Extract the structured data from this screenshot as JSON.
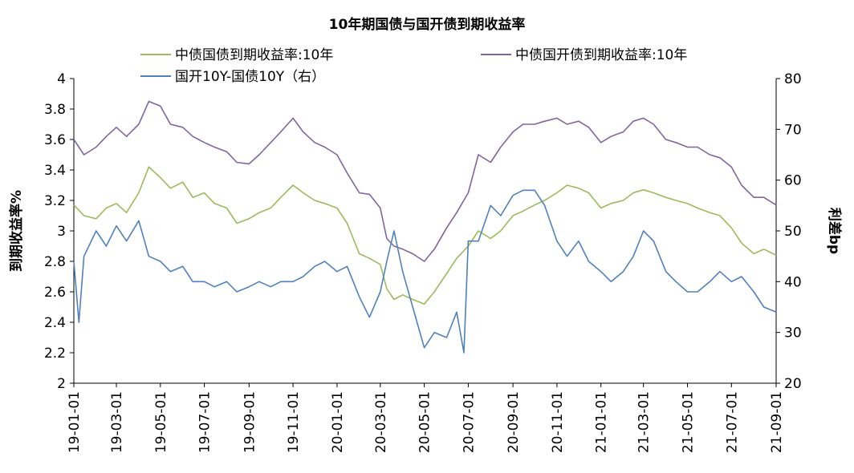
{
  "chart_data": {
    "type": "line",
    "title": "10年期国债与国开债到期收益率",
    "ylabel_left": "到期收益率%",
    "ylabel_right": "利差bp",
    "ylim_left": [
      2,
      4
    ],
    "yticks_left": [
      "4",
      "3.8",
      "3.6",
      "3.4",
      "3.2",
      "3",
      "2.8",
      "2.6",
      "2.4",
      "2.2",
      "2"
    ],
    "ylim_right": [
      20,
      80
    ],
    "yticks_right": [
      "80",
      "70",
      "60",
      "50",
      "40",
      "30",
      "20"
    ],
    "x_ticks": [
      "19-01-01",
      "19-03-01",
      "19-05-01",
      "19-07-01",
      "19-09-01",
      "19-11-01",
      "20-01-01",
      "20-03-01",
      "20-05-01",
      "20-07-01",
      "20-09-01",
      "20-11-01",
      "21-01-01",
      "21-03-01",
      "21-05-01",
      "21-07-01",
      "21-09-01"
    ],
    "legend_position": "top",
    "series": [
      {
        "name": "中债国债到期收益率:10年",
        "color": "#9bbb59",
        "axis": "left",
        "x": [
          "2019-01-01",
          "2019-01-15",
          "2019-02-01",
          "2019-02-15",
          "2019-03-01",
          "2019-03-15",
          "2019-04-01",
          "2019-04-15",
          "2019-05-01",
          "2019-05-15",
          "2019-06-01",
          "2019-06-15",
          "2019-07-01",
          "2019-07-15",
          "2019-08-01",
          "2019-08-15",
          "2019-09-01",
          "2019-09-15",
          "2019-10-01",
          "2019-10-15",
          "2019-11-01",
          "2019-11-15",
          "2019-12-01",
          "2019-12-15",
          "2020-01-01",
          "2020-01-15",
          "2020-02-01",
          "2020-02-15",
          "2020-03-01",
          "2020-03-10",
          "2020-03-20",
          "2020-04-01",
          "2020-04-15",
          "2020-05-01",
          "2020-05-15",
          "2020-06-01",
          "2020-06-15",
          "2020-07-01",
          "2020-07-15",
          "2020-08-01",
          "2020-08-15",
          "2020-09-01",
          "2020-09-15",
          "2020-10-01",
          "2020-10-15",
          "2020-11-01",
          "2020-11-15",
          "2020-12-01",
          "2020-12-15",
          "2021-01-01",
          "2021-01-15",
          "2021-02-01",
          "2021-02-15",
          "2021-03-01",
          "2021-03-15",
          "2021-04-01",
          "2021-04-15",
          "2021-05-01",
          "2021-05-15",
          "2021-06-01",
          "2021-06-15",
          "2021-07-01",
          "2021-07-15",
          "2021-08-01",
          "2021-08-15",
          "2021-09-01"
        ],
        "values": [
          3.17,
          3.1,
          3.08,
          3.15,
          3.18,
          3.12,
          3.25,
          3.42,
          3.35,
          3.28,
          3.32,
          3.22,
          3.25,
          3.18,
          3.15,
          3.05,
          3.08,
          3.12,
          3.15,
          3.22,
          3.3,
          3.25,
          3.2,
          3.18,
          3.15,
          3.05,
          2.85,
          2.82,
          2.78,
          2.62,
          2.55,
          2.58,
          2.55,
          2.52,
          2.6,
          2.72,
          2.82,
          2.9,
          3.0,
          2.95,
          3.0,
          3.1,
          3.13,
          3.17,
          3.2,
          3.25,
          3.3,
          3.28,
          3.25,
          3.15,
          3.18,
          3.2,
          3.25,
          3.27,
          3.25,
          3.22,
          3.2,
          3.18,
          3.15,
          3.12,
          3.1,
          3.02,
          2.92,
          2.85,
          2.88,
          2.84
        ]
      },
      {
        "name": "中债国开债到期收益率:10年",
        "color": "#8064a2",
        "axis": "left",
        "x": [
          "2019-01-01",
          "2019-01-15",
          "2019-02-01",
          "2019-02-15",
          "2019-03-01",
          "2019-03-15",
          "2019-04-01",
          "2019-04-15",
          "2019-05-01",
          "2019-05-15",
          "2019-06-01",
          "2019-06-15",
          "2019-07-01",
          "2019-07-15",
          "2019-08-01",
          "2019-08-15",
          "2019-09-01",
          "2019-09-15",
          "2019-10-01",
          "2019-10-15",
          "2019-11-01",
          "2019-11-15",
          "2019-12-01",
          "2019-12-15",
          "2020-01-01",
          "2020-01-15",
          "2020-02-01",
          "2020-02-15",
          "2020-03-01",
          "2020-03-10",
          "2020-03-20",
          "2020-04-01",
          "2020-04-15",
          "2020-05-01",
          "2020-05-15",
          "2020-06-01",
          "2020-06-15",
          "2020-07-01",
          "2020-07-15",
          "2020-08-01",
          "2020-08-15",
          "2020-09-01",
          "2020-09-15",
          "2020-10-01",
          "2020-10-15",
          "2020-11-01",
          "2020-11-15",
          "2020-12-01",
          "2020-12-15",
          "2021-01-01",
          "2021-01-15",
          "2021-02-01",
          "2021-02-15",
          "2021-03-01",
          "2021-03-15",
          "2021-04-01",
          "2021-04-15",
          "2021-05-01",
          "2021-05-15",
          "2021-06-01",
          "2021-06-15",
          "2021-07-01",
          "2021-07-15",
          "2021-08-01",
          "2021-08-15",
          "2021-09-01"
        ],
        "values": [
          3.6,
          3.5,
          3.55,
          3.62,
          3.68,
          3.62,
          3.7,
          3.85,
          3.82,
          3.7,
          3.68,
          3.62,
          3.58,
          3.55,
          3.52,
          3.45,
          3.44,
          3.5,
          3.58,
          3.65,
          3.74,
          3.65,
          3.58,
          3.55,
          3.5,
          3.38,
          3.25,
          3.24,
          3.15,
          2.95,
          2.9,
          2.88,
          2.85,
          2.8,
          2.88,
          3.02,
          3.12,
          3.25,
          3.5,
          3.45,
          3.55,
          3.65,
          3.7,
          3.7,
          3.72,
          3.74,
          3.7,
          3.72,
          3.68,
          3.58,
          3.62,
          3.65,
          3.72,
          3.74,
          3.7,
          3.6,
          3.58,
          3.55,
          3.55,
          3.5,
          3.48,
          3.42,
          3.3,
          3.22,
          3.22,
          3.17
        ]
      },
      {
        "name": "国开10Y-国债10Y（右）",
        "color": "#4f81bd",
        "axis": "right",
        "x": [
          "2019-01-01",
          "2019-01-08",
          "2019-01-15",
          "2019-02-01",
          "2019-02-15",
          "2019-03-01",
          "2019-03-15",
          "2019-04-01",
          "2019-04-15",
          "2019-05-01",
          "2019-05-15",
          "2019-06-01",
          "2019-06-15",
          "2019-07-01",
          "2019-07-15",
          "2019-08-01",
          "2019-08-15",
          "2019-09-01",
          "2019-09-15",
          "2019-10-01",
          "2019-10-15",
          "2019-11-01",
          "2019-11-15",
          "2019-12-01",
          "2019-12-15",
          "2020-01-01",
          "2020-01-15",
          "2020-02-01",
          "2020-02-15",
          "2020-03-01",
          "2020-03-10",
          "2020-03-20",
          "2020-04-01",
          "2020-04-15",
          "2020-05-01",
          "2020-05-15",
          "2020-06-01",
          "2020-06-15",
          "2020-06-25",
          "2020-07-01",
          "2020-07-15",
          "2020-08-01",
          "2020-08-15",
          "2020-09-01",
          "2020-09-15",
          "2020-10-01",
          "2020-10-15",
          "2020-11-01",
          "2020-11-15",
          "2020-12-01",
          "2020-12-15",
          "2021-01-01",
          "2021-01-15",
          "2021-02-01",
          "2021-02-15",
          "2021-03-01",
          "2021-03-15",
          "2021-04-01",
          "2021-04-15",
          "2021-05-01",
          "2021-05-15",
          "2021-06-01",
          "2021-06-15",
          "2021-07-01",
          "2021-07-15",
          "2021-08-01",
          "2021-08-15",
          "2021-09-01"
        ],
        "values": [
          44,
          32,
          45,
          50,
          47,
          51,
          48,
          52,
          45,
          44,
          42,
          43,
          40,
          40,
          39,
          40,
          38,
          39,
          40,
          39,
          40,
          40,
          41,
          43,
          44,
          42,
          43,
          37,
          33,
          38,
          44,
          50,
          42,
          35,
          27,
          30,
          29,
          34,
          26,
          48,
          48,
          55,
          53,
          57,
          58,
          58,
          55,
          48,
          45,
          48,
          44,
          42,
          40,
          42,
          45,
          50,
          48,
          42,
          40,
          38,
          38,
          40,
          42,
          40,
          41,
          38,
          35,
          34
        ]
      }
    ]
  }
}
